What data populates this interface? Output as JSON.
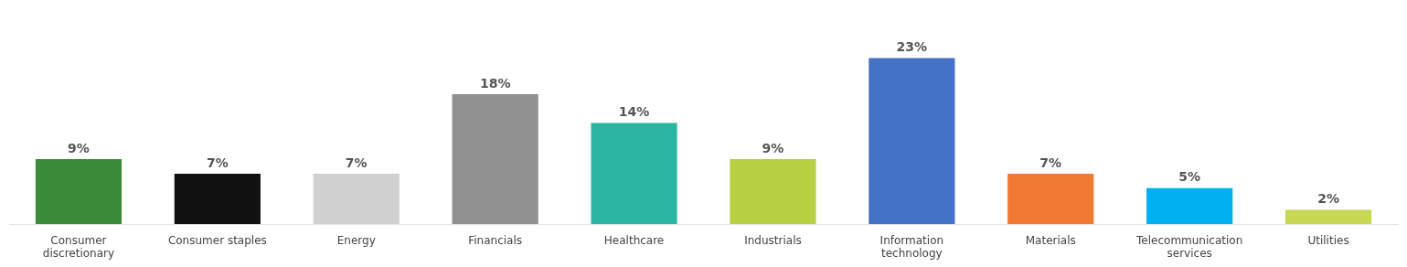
{
  "chart_data": {
    "type": "bar",
    "categories": [
      "Consumer\ndiscretionary",
      "Consumer staples",
      "Energy",
      "Financials",
      "Healthcare",
      "Industrials",
      "Information\ntechnology",
      "Materials",
      "Telecommunication\nservices",
      "Utilities"
    ],
    "values": [
      9,
      7,
      7,
      18,
      14,
      9,
      23,
      7,
      5,
      2
    ],
    "value_labels": [
      "9%",
      "7%",
      "7%",
      "18%",
      "14%",
      "9%",
      "23%",
      "7%",
      "5%",
      "2%"
    ],
    "colors": [
      "#3a8a3a",
      "#111111",
      "#d0d0d0",
      "#909090",
      "#2ab5a0",
      "#b8d044",
      "#4472c4",
      "#f07830",
      "#00b0f0",
      "#c8d850"
    ],
    "ylim": [
      0,
      28
    ],
    "data_labels": true,
    "tick_labels": "x",
    "grid": false
  }
}
